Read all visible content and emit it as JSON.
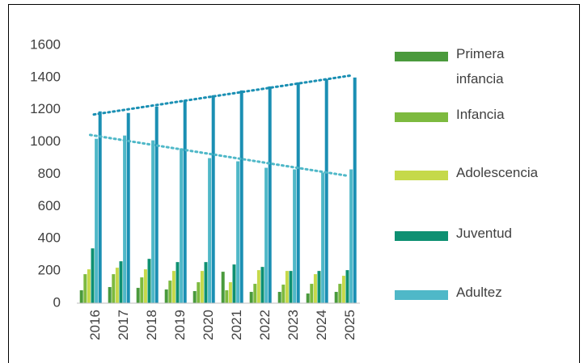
{
  "chart_data": {
    "type": "bar",
    "categories": [
      "2016",
      "2017",
      "2018",
      "2019",
      "2020",
      "2021",
      "2022",
      "2023",
      "2024",
      "2025"
    ],
    "series": [
      {
        "name": "Primera infancia",
        "color": "#4a9a3c",
        "values": [
          80,
          100,
          95,
          85,
          75,
          195,
          70,
          70,
          60,
          70
        ]
      },
      {
        "name": "Infancia",
        "color": "#7dba3f",
        "values": [
          180,
          180,
          160,
          140,
          130,
          80,
          120,
          115,
          120,
          120
        ]
      },
      {
        "name": "Adolescencia",
        "color": "#c5d94a",
        "values": [
          210,
          220,
          210,
          200,
          200,
          130,
          205,
          200,
          180,
          170
        ]
      },
      {
        "name": "Juventud",
        "color": "#0e9072",
        "values": [
          340,
          260,
          275,
          255,
          255,
          240,
          225,
          200,
          200,
          205
        ]
      },
      {
        "name": "Adultez",
        "color": "#4fb8c8",
        "values": [
          1020,
          1040,
          1010,
          960,
          900,
          880,
          840,
          830,
          810,
          830
        ],
        "trendline": true
      },
      {
        "color": "#1a8fb3",
        "values": [
          1190,
          1180,
          1220,
          1260,
          1290,
          1320,
          1345,
          1370,
          1390,
          1400
        ],
        "trendline": true
      }
    ],
    "ylim": [
      0,
      1600
    ],
    "yticks": [
      0,
      200,
      400,
      600,
      800,
      1000,
      1200,
      1400,
      1600
    ],
    "grid": false,
    "legend": "right"
  }
}
